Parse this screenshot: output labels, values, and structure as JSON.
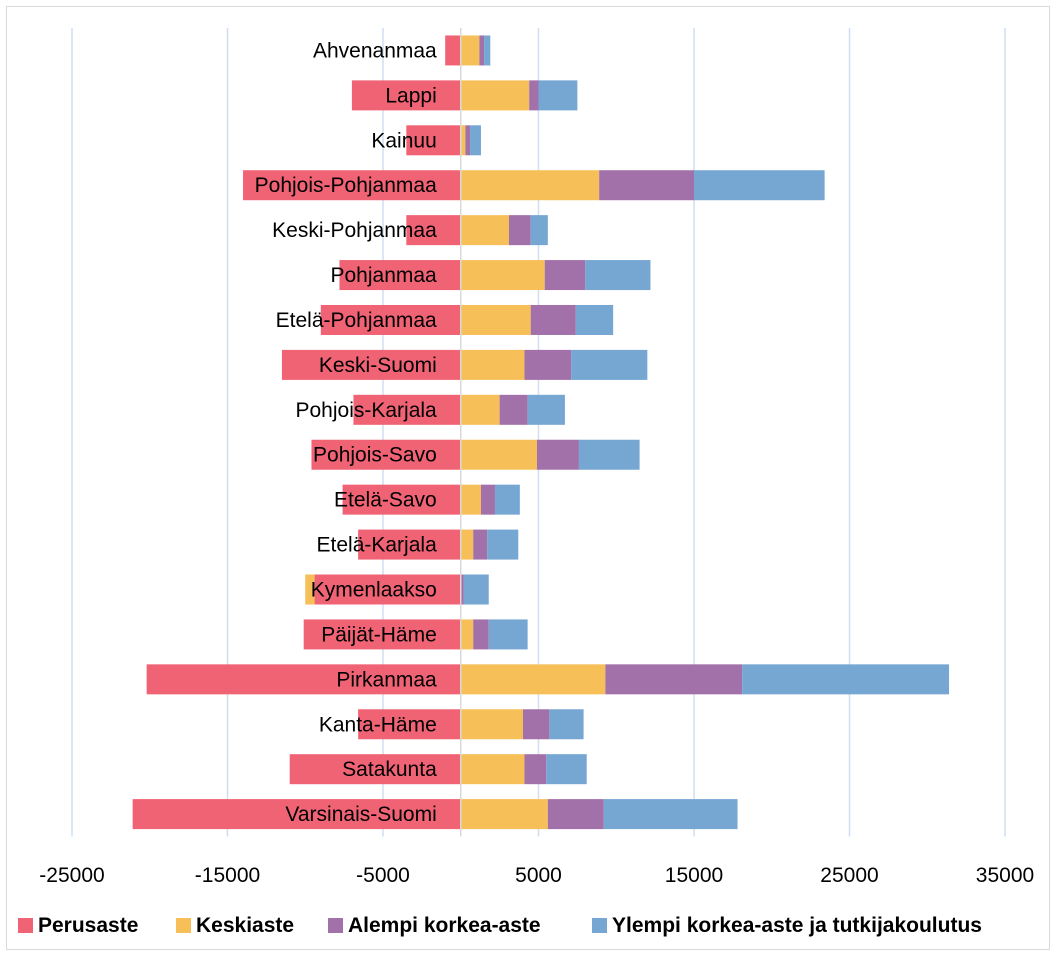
{
  "chart_data": {
    "type": "bar",
    "orientation": "horizontal",
    "stacked": true,
    "title": "",
    "xlabel": "",
    "ylabel": "",
    "xlim": [
      -25000,
      35000
    ],
    "xticks": [
      -25000,
      -15000,
      -5000,
      5000,
      15000,
      25000,
      35000
    ],
    "grid": "vertical",
    "legend_position": "bottom",
    "categories": [
      "Ahvenanmaa",
      "Lappi",
      "Kainuu",
      "Pohjois-Pohjanmaa",
      "Keski-Pohjanmaa",
      "Pohjanmaa",
      "Etelä-Pohjanmaa",
      "Keski-Suomi",
      "Pohjois-Karjala",
      "Pohjois-Savo",
      "Etelä-Savo",
      "Etelä-Karjala",
      "Kymenlaakso",
      "Päijät-Häme",
      "Pirkanmaa",
      "Kanta-Häme",
      "Satakunta",
      "Varsinais-Suomi"
    ],
    "series": [
      {
        "name": "Perusaste",
        "color": "#f06375",
        "values": [
          -1000,
          -7000,
          -3500,
          -14000,
          -3500,
          -7800,
          -9000,
          -11500,
          -6900,
          -9600,
          -7600,
          -6600,
          -9400,
          -10100,
          -20200,
          -6600,
          -11000,
          -21100
        ]
      },
      {
        "name": "Keskiaste",
        "color": "#f6bf58",
        "values": [
          1200,
          4400,
          300,
          8900,
          3100,
          5400,
          4500,
          4100,
          2500,
          4900,
          1300,
          800,
          -600,
          800,
          9300,
          4000,
          4100,
          5600
        ]
      },
      {
        "name": "Alempi korkea-aste",
        "color": "#a371aa",
        "values": [
          300,
          600,
          300,
          6100,
          1400,
          2600,
          2900,
          3000,
          1800,
          2700,
          900,
          900,
          200,
          1000,
          8800,
          1700,
          1400,
          3600
        ]
      },
      {
        "name": "Ylempi korkea-aste ja tutkijakoulutus",
        "color": "#76a6d2",
        "values": [
          400,
          2500,
          700,
          8400,
          1100,
          4200,
          2400,
          4900,
          2400,
          3900,
          1600,
          2000,
          1600,
          2500,
          13300,
          2200,
          2600,
          8600
        ]
      }
    ]
  }
}
